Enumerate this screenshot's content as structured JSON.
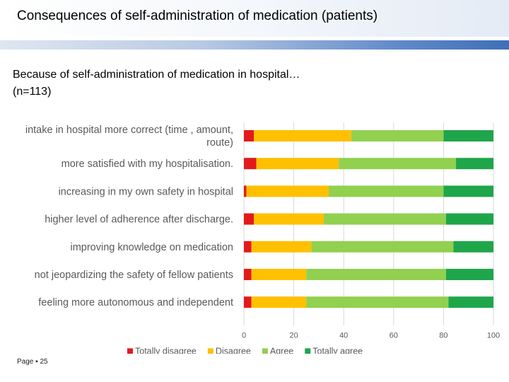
{
  "slide": {
    "title": "Consequences of self-administration of medication (patients)",
    "subtitle_line1": "Because of self-administration of medication in hospital…",
    "subtitle_line2": "(n=113)",
    "page_label": "Page ",
    "page_number": "25"
  },
  "chart_data": {
    "type": "bar",
    "orientation": "horizontal",
    "stacked": true,
    "categories": [
      [
        "intake in hospital more correct (time , amount,",
        "route)"
      ],
      [
        "more satisfied with my hospitalisation."
      ],
      [
        "increasing in my own safety in hospital"
      ],
      [
        "higher level of adherence after discharge."
      ],
      [
        "improving knowledge on medication"
      ],
      [
        "not jeopardizing the safety of fellow patients"
      ],
      [
        "feeling more autonomous and independent"
      ]
    ],
    "series": [
      {
        "name": "Totally disagree",
        "color": "#e31a1c",
        "values": [
          4,
          5,
          1,
          4,
          3,
          3,
          3
        ]
      },
      {
        "name": "Disagree",
        "color": "#ffc000",
        "values": [
          39,
          33,
          33,
          28,
          24,
          22,
          22
        ]
      },
      {
        "name": "Agree",
        "color": "#92d050",
        "values": [
          37,
          47,
          46,
          49,
          57,
          56,
          57
        ]
      },
      {
        "name": "Totally agree",
        "color": "#1fa64a",
        "values": [
          20,
          15,
          20,
          19,
          16,
          19,
          18
        ]
      }
    ],
    "xlim": [
      0,
      100
    ],
    "xticks": [
      0,
      20,
      40,
      60,
      80,
      100
    ],
    "grid": "vertical",
    "legend": "bottom"
  }
}
